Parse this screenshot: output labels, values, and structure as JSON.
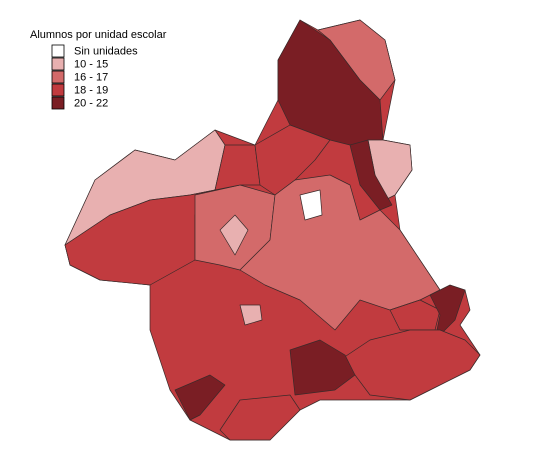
{
  "legend": {
    "title": "Alumnos por unidad escolar",
    "items": [
      {
        "label": "Sin unidades",
        "color": "#ffffff"
      },
      {
        "label": "10 - 15",
        "color": "#e8b0b0"
      },
      {
        "label": "16 - 17",
        "color": "#d36a6a"
      },
      {
        "label": "18 - 19",
        "color": "#c13b3f"
      },
      {
        "label": "20 - 22",
        "color": "#7a1e24"
      }
    ]
  }
}
